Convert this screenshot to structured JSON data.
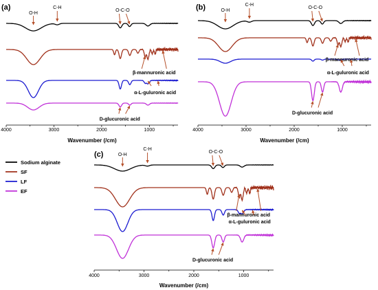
{
  "figure": {
    "legend": [
      {
        "name": "Sodium alginate",
        "color": "#000000"
      },
      {
        "name": "SF",
        "color": "#a0301a"
      },
      {
        "name": "LF",
        "color": "#1a1ad0"
      },
      {
        "name": "EF",
        "color": "#c030d8"
      }
    ]
  },
  "chart_data": [
    {
      "type": "line",
      "panel": "(a)",
      "xlabel": "Wavenumber (/cm)",
      "xlim": [
        4000,
        400
      ],
      "x_reversed": true,
      "xticks": [
        "4000",
        "3000",
        "2000",
        "1000"
      ],
      "series": [
        {
          "name": "Sodium alginate",
          "peaks": [
            3430,
            2930,
            1610,
            1415,
            1030
          ]
        },
        {
          "name": "SF",
          "peaks": [
            3430,
            1730,
            1610,
            1410,
            1240,
            1090,
            1030,
            940,
            880
          ]
        },
        {
          "name": "LF",
          "peaks": [
            3430,
            1610,
            1410,
            1090,
            1030
          ]
        },
        {
          "name": "EF",
          "peaks": [
            3430,
            1610,
            1410,
            1030
          ]
        }
      ],
      "annotations": [
        {
          "text": "O-H",
          "bold": false
        },
        {
          "text": "C-H",
          "bold": false
        },
        {
          "text": "O-C-O",
          "bold": false
        },
        {
          "text": "β-mannuronic acid",
          "bold": true
        },
        {
          "text": "α-L-guluronic acid",
          "bold": true
        },
        {
          "text": "D-glucuronic acid",
          "bold": true
        }
      ]
    },
    {
      "type": "line",
      "panel": "(b)",
      "xlabel": "Wavenumber (/cm)",
      "xlim": [
        4000,
        400
      ],
      "x_reversed": true,
      "xticks": [
        "4000",
        "3000",
        "2000",
        "1000"
      ],
      "series": [
        {
          "name": "Sodium alginate",
          "peaks": [
            3430,
            2930,
            1610,
            1415,
            1030
          ]
        },
        {
          "name": "SF",
          "peaks": [
            3430,
            1730,
            1610,
            1410,
            1240,
            1090,
            1030,
            940,
            880
          ]
        },
        {
          "name": "LF",
          "peaks": [
            3430,
            1610,
            1410,
            1030
          ]
        },
        {
          "name": "EF",
          "peaks": [
            3430,
            1610,
            1410,
            1030
          ]
        }
      ],
      "annotations": [
        {
          "text": "O-H",
          "bold": false
        },
        {
          "text": "C-H",
          "bold": false
        },
        {
          "text": "O-C-O",
          "bold": false
        },
        {
          "text": "β-mannuronic acid",
          "bold": true
        },
        {
          "text": "α-L-guluronic acid",
          "bold": true
        },
        {
          "text": "D-glucuronic acid",
          "bold": true
        }
      ]
    },
    {
      "type": "line",
      "panel": "(c)",
      "xlabel": "Wavenumber (/cm)",
      "xlim": [
        4000,
        400
      ],
      "x_reversed": true,
      "xticks": [
        "4000",
        "3000",
        "2000",
        "1000"
      ],
      "series": [
        {
          "name": "Sodium alginate",
          "peaks": [
            3430,
            2930,
            1610,
            1415,
            1030
          ]
        },
        {
          "name": "SF",
          "peaks": [
            3430,
            1730,
            1610,
            1410,
            1240,
            1090,
            1030,
            940,
            880
          ]
        },
        {
          "name": "LF",
          "peaks": [
            3430,
            1610,
            1410,
            1030
          ]
        },
        {
          "name": "EF",
          "peaks": [
            3430,
            1610,
            1410,
            1030
          ]
        }
      ],
      "annotations": [
        {
          "text": "O-H",
          "bold": false
        },
        {
          "text": "C-H",
          "bold": false
        },
        {
          "text": "O-C-O",
          "bold": false
        },
        {
          "text": "β-mannuronic acid",
          "bold": true
        },
        {
          "text": "α-L-guluronic acid",
          "bold": true
        },
        {
          "text": "D-glucuronic acid",
          "bold": true
        }
      ]
    }
  ]
}
